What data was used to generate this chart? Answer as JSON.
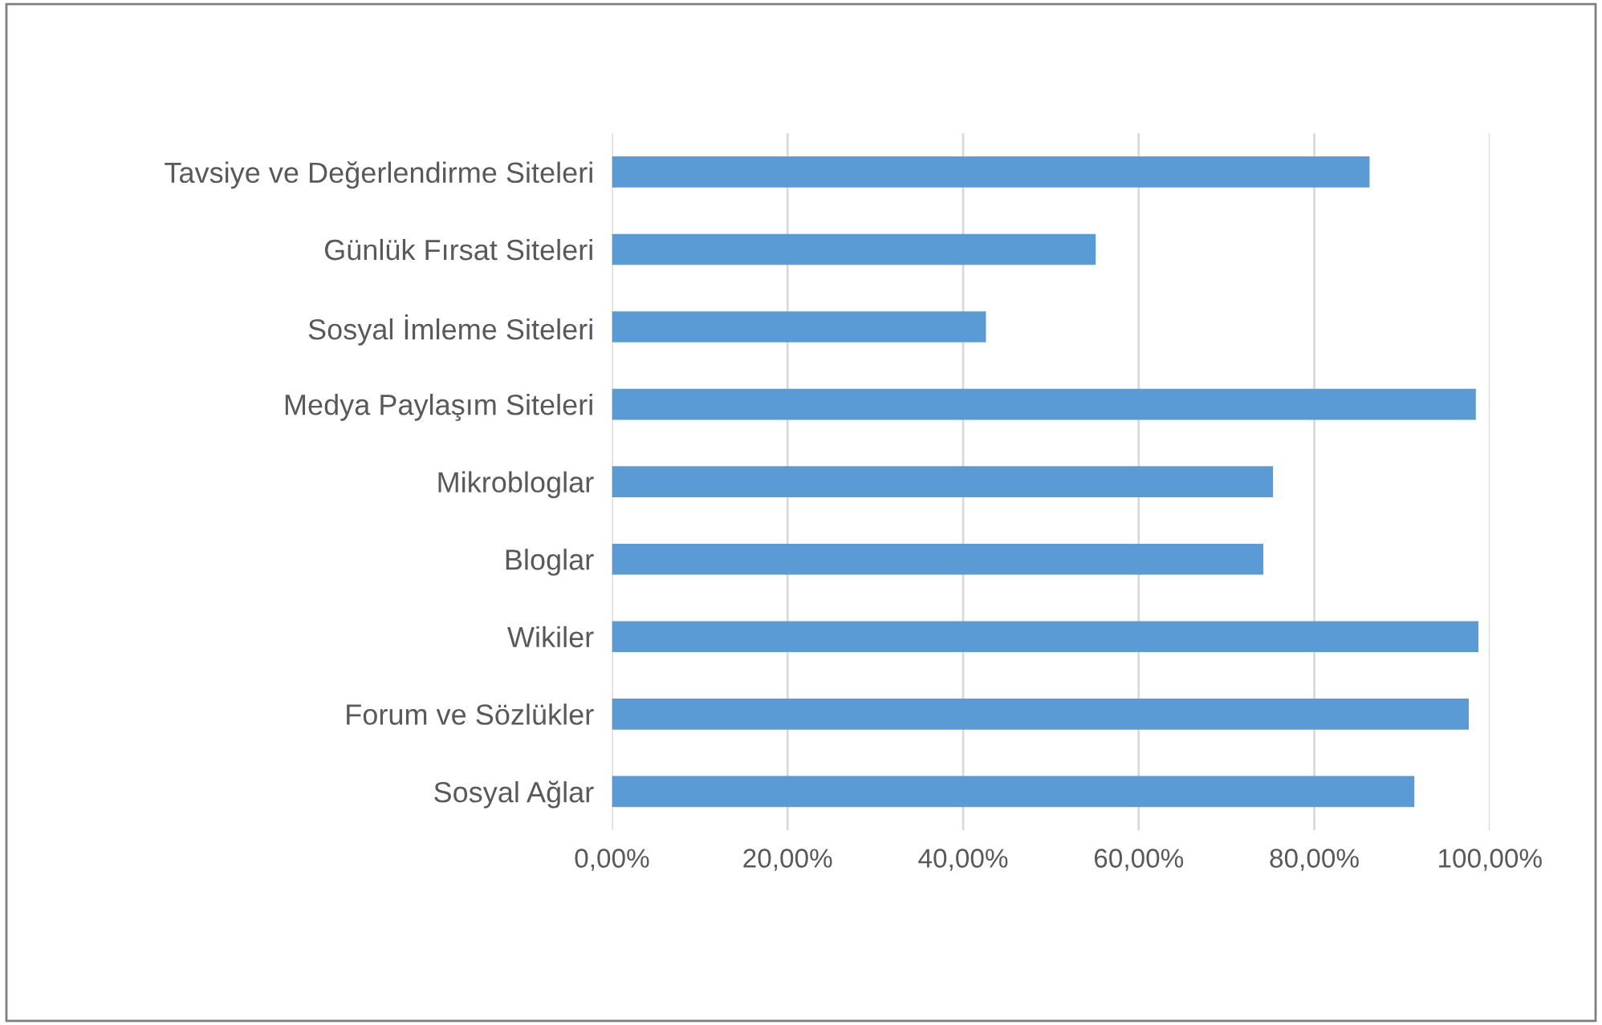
{
  "chart_data": {
    "type": "bar",
    "orientation": "horizontal",
    "categories": [
      "Tavsiye ve Değerlendirme Siteleri",
      "Günlük Fırsat Siteleri",
      "Sosyal İmleme Siteleri",
      "Medya Paylaşım Siteleri",
      "Mikrobloglar",
      "Bloglar",
      "Wikiler",
      "Forum ve Sözlükler",
      "Sosyal Ağlar"
    ],
    "values": [
      86.3,
      55.1,
      42.6,
      98.4,
      75.3,
      74.2,
      98.7,
      97.6,
      91.4
    ],
    "color": "#5b9bd5",
    "xlim": [
      0,
      100
    ],
    "xticks": [
      {
        "value": 0,
        "label": "0,00%"
      },
      {
        "value": 20,
        "label": "20,00%"
      },
      {
        "value": 40,
        "label": "40,00%"
      },
      {
        "value": 60,
        "label": "60,00%"
      },
      {
        "value": 80,
        "label": "80,00%"
      },
      {
        "value": 100,
        "label": "100,00%"
      }
    ],
    "grid": "x",
    "legend": false
  }
}
